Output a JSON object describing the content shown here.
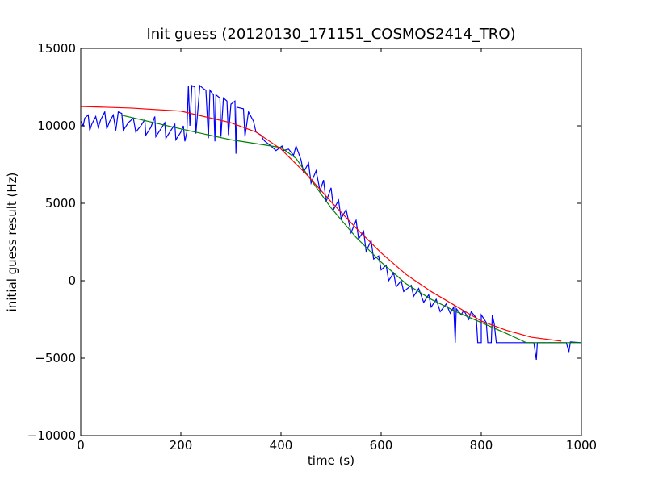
{
  "chart_data": {
    "type": "line",
    "title": "Init guess (20120130_171151_COSMOS2414_TRO)",
    "xlabel": "time (s)",
    "ylabel": "initial guess result (Hz)",
    "xlim": [
      0,
      1000
    ],
    "ylim": [
      -10000,
      15000
    ],
    "xticks": [
      0,
      200,
      400,
      600,
      800,
      1000
    ],
    "yticks": [
      {
        "value": -10000,
        "label": "−10000"
      },
      {
        "value": -5000,
        "label": "−5000"
      },
      0,
      5000,
      10000,
      15000
    ],
    "grid": false,
    "series": [
      {
        "color": "#0000ff",
        "x": [
          0,
          5,
          8,
          15,
          18,
          22,
          30,
          35,
          40,
          48,
          52,
          58,
          65,
          70,
          75,
          82,
          85,
          95,
          105,
          110,
          120,
          128,
          130,
          140,
          148,
          150,
          160,
          168,
          170,
          180,
          188,
          190,
          200,
          205,
          208,
          212,
          215,
          218,
          222,
          228,
          230,
          238,
          245,
          250,
          255,
          258,
          265,
          268,
          270,
          278,
          280,
          285,
          292,
          295,
          300,
          308,
          310,
          312,
          325,
          328,
          335,
          345,
          350,
          360,
          365,
          368,
          380,
          390,
          402,
          405,
          415,
          425,
          430,
          440,
          445,
          455,
          460,
          470,
          478,
          485,
          490,
          500,
          505,
          515,
          520,
          530,
          540,
          550,
          555,
          565,
          570,
          580,
          585,
          595,
          600,
          610,
          615,
          625,
          630,
          640,
          645,
          660,
          665,
          675,
          685,
          695,
          700,
          710,
          718,
          730,
          738,
          745,
          748,
          750,
          760,
          765,
          775,
          780,
          790,
          793,
          800,
          800,
          810,
          813,
          820,
          822,
          826,
          830,
          905,
          910,
          912,
          970,
          975,
          978,
          1000
        ],
        "values": [
          10300,
          10000,
          10500,
          10700,
          9700,
          10100,
          10600,
          9900,
          10400,
          10900,
          9800,
          10300,
          10700,
          9700,
          10900,
          10800,
          9700,
          10200,
          10500,
          9600,
          10000,
          10400,
          9400,
          9900,
          10600,
          9300,
          9800,
          10200,
          9200,
          9700,
          10100,
          9100,
          9600,
          10000,
          9000,
          9600,
          12600,
          10000,
          12600,
          12500,
          9500,
          12600,
          12400,
          12300,
          9200,
          12300,
          12000,
          9000,
          12000,
          11800,
          9300,
          11800,
          11600,
          9400,
          11400,
          11600,
          8200,
          11200,
          11100,
          9300,
          10900,
          10300,
          9600,
          9400,
          9100,
          9000,
          8700,
          8400,
          8700,
          8400,
          8500,
          8100,
          8700,
          7800,
          7000,
          7600,
          6300,
          7100,
          5800,
          6500,
          5100,
          6000,
          4600,
          5200,
          4000,
          4600,
          3100,
          3900,
          2700,
          3200,
          1900,
          2600,
          1400,
          1600,
          700,
          1000,
          0,
          500,
          -400,
          0,
          -700,
          -300,
          -1000,
          -500,
          -1400,
          -900,
          -1700,
          -1200,
          -2000,
          -1500,
          -2100,
          -1700,
          -4000,
          -1800,
          -2200,
          -1900,
          -2500,
          -2000,
          -2400,
          -4000,
          -4000,
          -2200,
          -2700,
          -4000,
          -4000,
          -2200,
          -2800,
          -4000,
          -4000,
          -5100,
          -4000,
          -4000,
          -4600,
          -3950,
          -4000
        ]
      },
      {
        "color": "#008000",
        "x": [
          80,
          200,
          300,
          400,
          430,
          460,
          500,
          550,
          600,
          650,
          700,
          750,
          800,
          850,
          890,
          1000
        ],
        "values": [
          10700,
          9800,
          9100,
          8600,
          7900,
          6500,
          4700,
          2800,
          1200,
          -200,
          -1200,
          -2000,
          -2700,
          -3400,
          -4000,
          -4000
        ]
      },
      {
        "color": "#ff0000",
        "x": [
          0,
          100,
          200,
          300,
          350,
          400,
          450,
          500,
          550,
          600,
          650,
          700,
          750,
          800,
          850,
          900,
          960
        ],
        "values": [
          11250,
          11150,
          10950,
          10200,
          9600,
          8500,
          6900,
          5100,
          3400,
          1800,
          400,
          -700,
          -1650,
          -2600,
          -3200,
          -3650,
          -3900
        ]
      }
    ]
  }
}
